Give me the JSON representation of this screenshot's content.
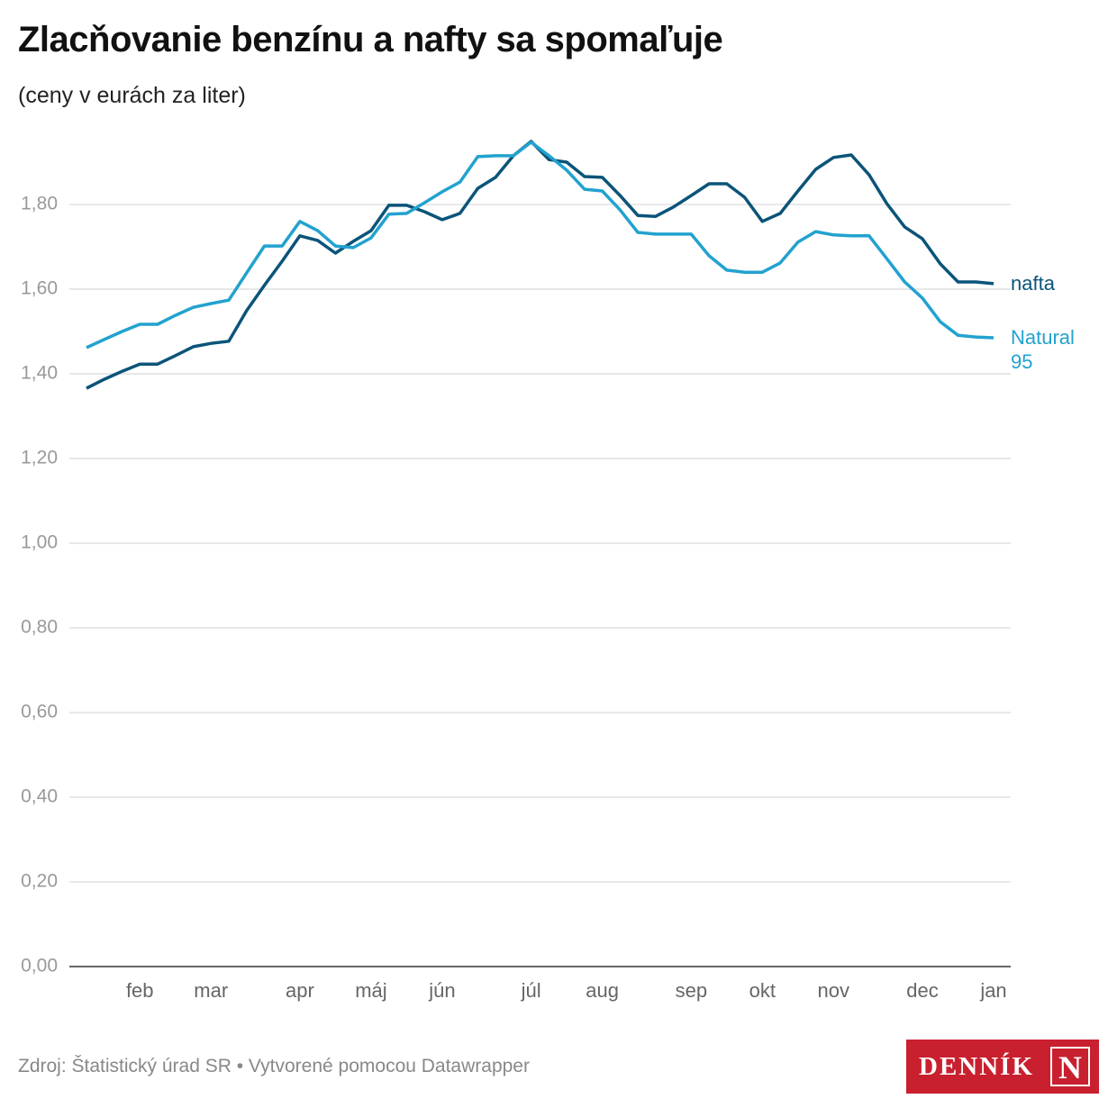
{
  "chart_data": {
    "type": "line",
    "title": "Zlacňovanie benzínu a nafty sa spomaľuje",
    "subtitle": "(ceny v eurách za liter)",
    "source": "Zdroj: Štatistický úrad SR • Vytvorené pomocou Datawrapper",
    "logo": "DENNÍK",
    "logo_mark": "N",
    "categories": [
      null,
      null,
      null,
      "feb",
      null,
      null,
      null,
      "mar",
      null,
      null,
      null,
      null,
      "apr",
      null,
      null,
      null,
      "máj",
      null,
      null,
      null,
      "jún",
      null,
      null,
      null,
      null,
      "júl",
      null,
      null,
      null,
      "aug",
      null,
      null,
      null,
      null,
      "sep",
      null,
      null,
      null,
      "okt",
      null,
      null,
      null,
      "nov",
      null,
      null,
      null,
      null,
      "dec",
      null,
      null,
      null,
      "jan"
    ],
    "series": [
      {
        "name": "nafta",
        "color": "#0b5479",
        "values": [
          1.366,
          1.387,
          1.406,
          1.423,
          1.423,
          1.443,
          1.464,
          1.472,
          1.477,
          1.549,
          1.609,
          1.666,
          1.726,
          1.715,
          1.685,
          1.713,
          1.738,
          1.798,
          1.798,
          1.783,
          1.764,
          1.779,
          1.838,
          1.864,
          1.915,
          1.949,
          1.906,
          1.9,
          1.866,
          1.864,
          1.821,
          1.774,
          1.772,
          1.794,
          1.821,
          1.849,
          1.849,
          1.817,
          1.76,
          1.779,
          1.832,
          1.883,
          1.911,
          1.917,
          1.87,
          1.802,
          1.747,
          1.719,
          1.66,
          1.617,
          1.617,
          1.613
        ]
      },
      {
        "name": "Natural 95",
        "color": "#22a2cf",
        "values": [
          1.462,
          1.481,
          1.5,
          1.517,
          1.517,
          1.538,
          1.557,
          1.566,
          1.574,
          1.638,
          1.702,
          1.702,
          1.76,
          1.738,
          1.702,
          1.698,
          1.721,
          1.777,
          1.779,
          1.804,
          1.83,
          1.853,
          1.913,
          1.915,
          1.915,
          1.947,
          1.915,
          1.881,
          1.836,
          1.832,
          1.787,
          1.734,
          1.73,
          1.73,
          1.73,
          1.679,
          1.645,
          1.64,
          1.64,
          1.662,
          1.711,
          1.736,
          1.728,
          1.726,
          1.726,
          1.672,
          1.617,
          1.579,
          1.523,
          1.491,
          1.487,
          1.485
        ]
      }
    ],
    "ylim": [
      0,
      2.0
    ],
    "yticks": [
      {
        "value": 0,
        "label": "0,00"
      },
      {
        "value": 0.2,
        "label": "0,20"
      },
      {
        "value": 0.4,
        "label": "0,40"
      },
      {
        "value": 0.6,
        "label": "0,60"
      },
      {
        "value": 0.8,
        "label": "0,80"
      },
      {
        "value": 1.0,
        "label": "1,00"
      },
      {
        "value": 1.2,
        "label": "1,20"
      },
      {
        "value": 1.4,
        "label": "1,40"
      },
      {
        "value": 1.6,
        "label": "1,60"
      },
      {
        "value": 1.8,
        "label": "1,80"
      }
    ],
    "grid": true
  }
}
